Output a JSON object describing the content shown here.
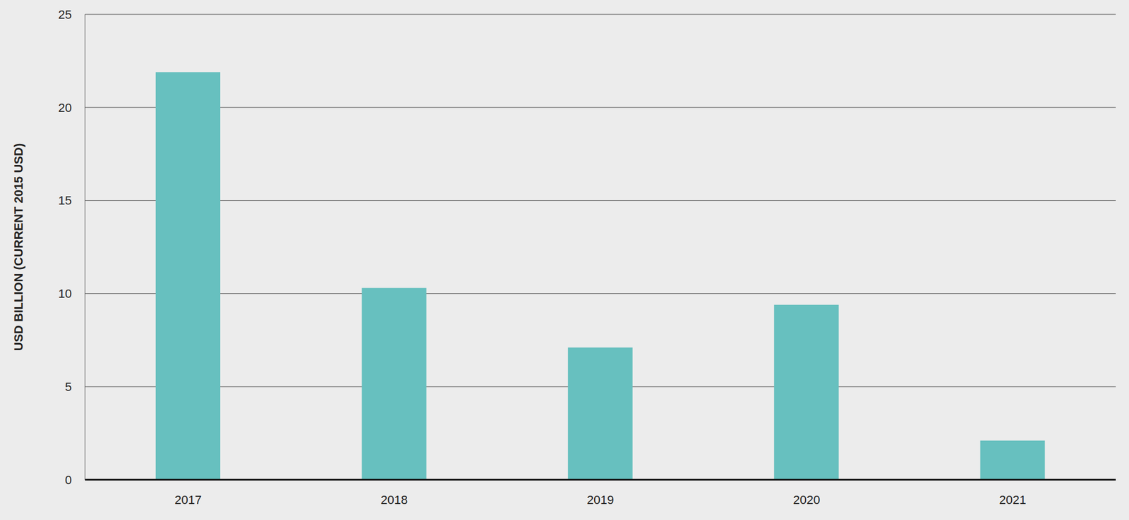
{
  "chart_data": {
    "type": "bar",
    "y_label": "USD BILLION (CURRENT 2015 USD)",
    "categories": [
      "2017",
      "2018",
      "2019",
      "2020",
      "2021"
    ],
    "values": [
      21.9,
      10.3,
      7.1,
      9.4,
      2.1
    ],
    "color": "#67c0bf",
    "ylim": [
      0,
      25
    ],
    "yticks": [
      0,
      5,
      10,
      15,
      20,
      25
    ],
    "grid": true
  }
}
